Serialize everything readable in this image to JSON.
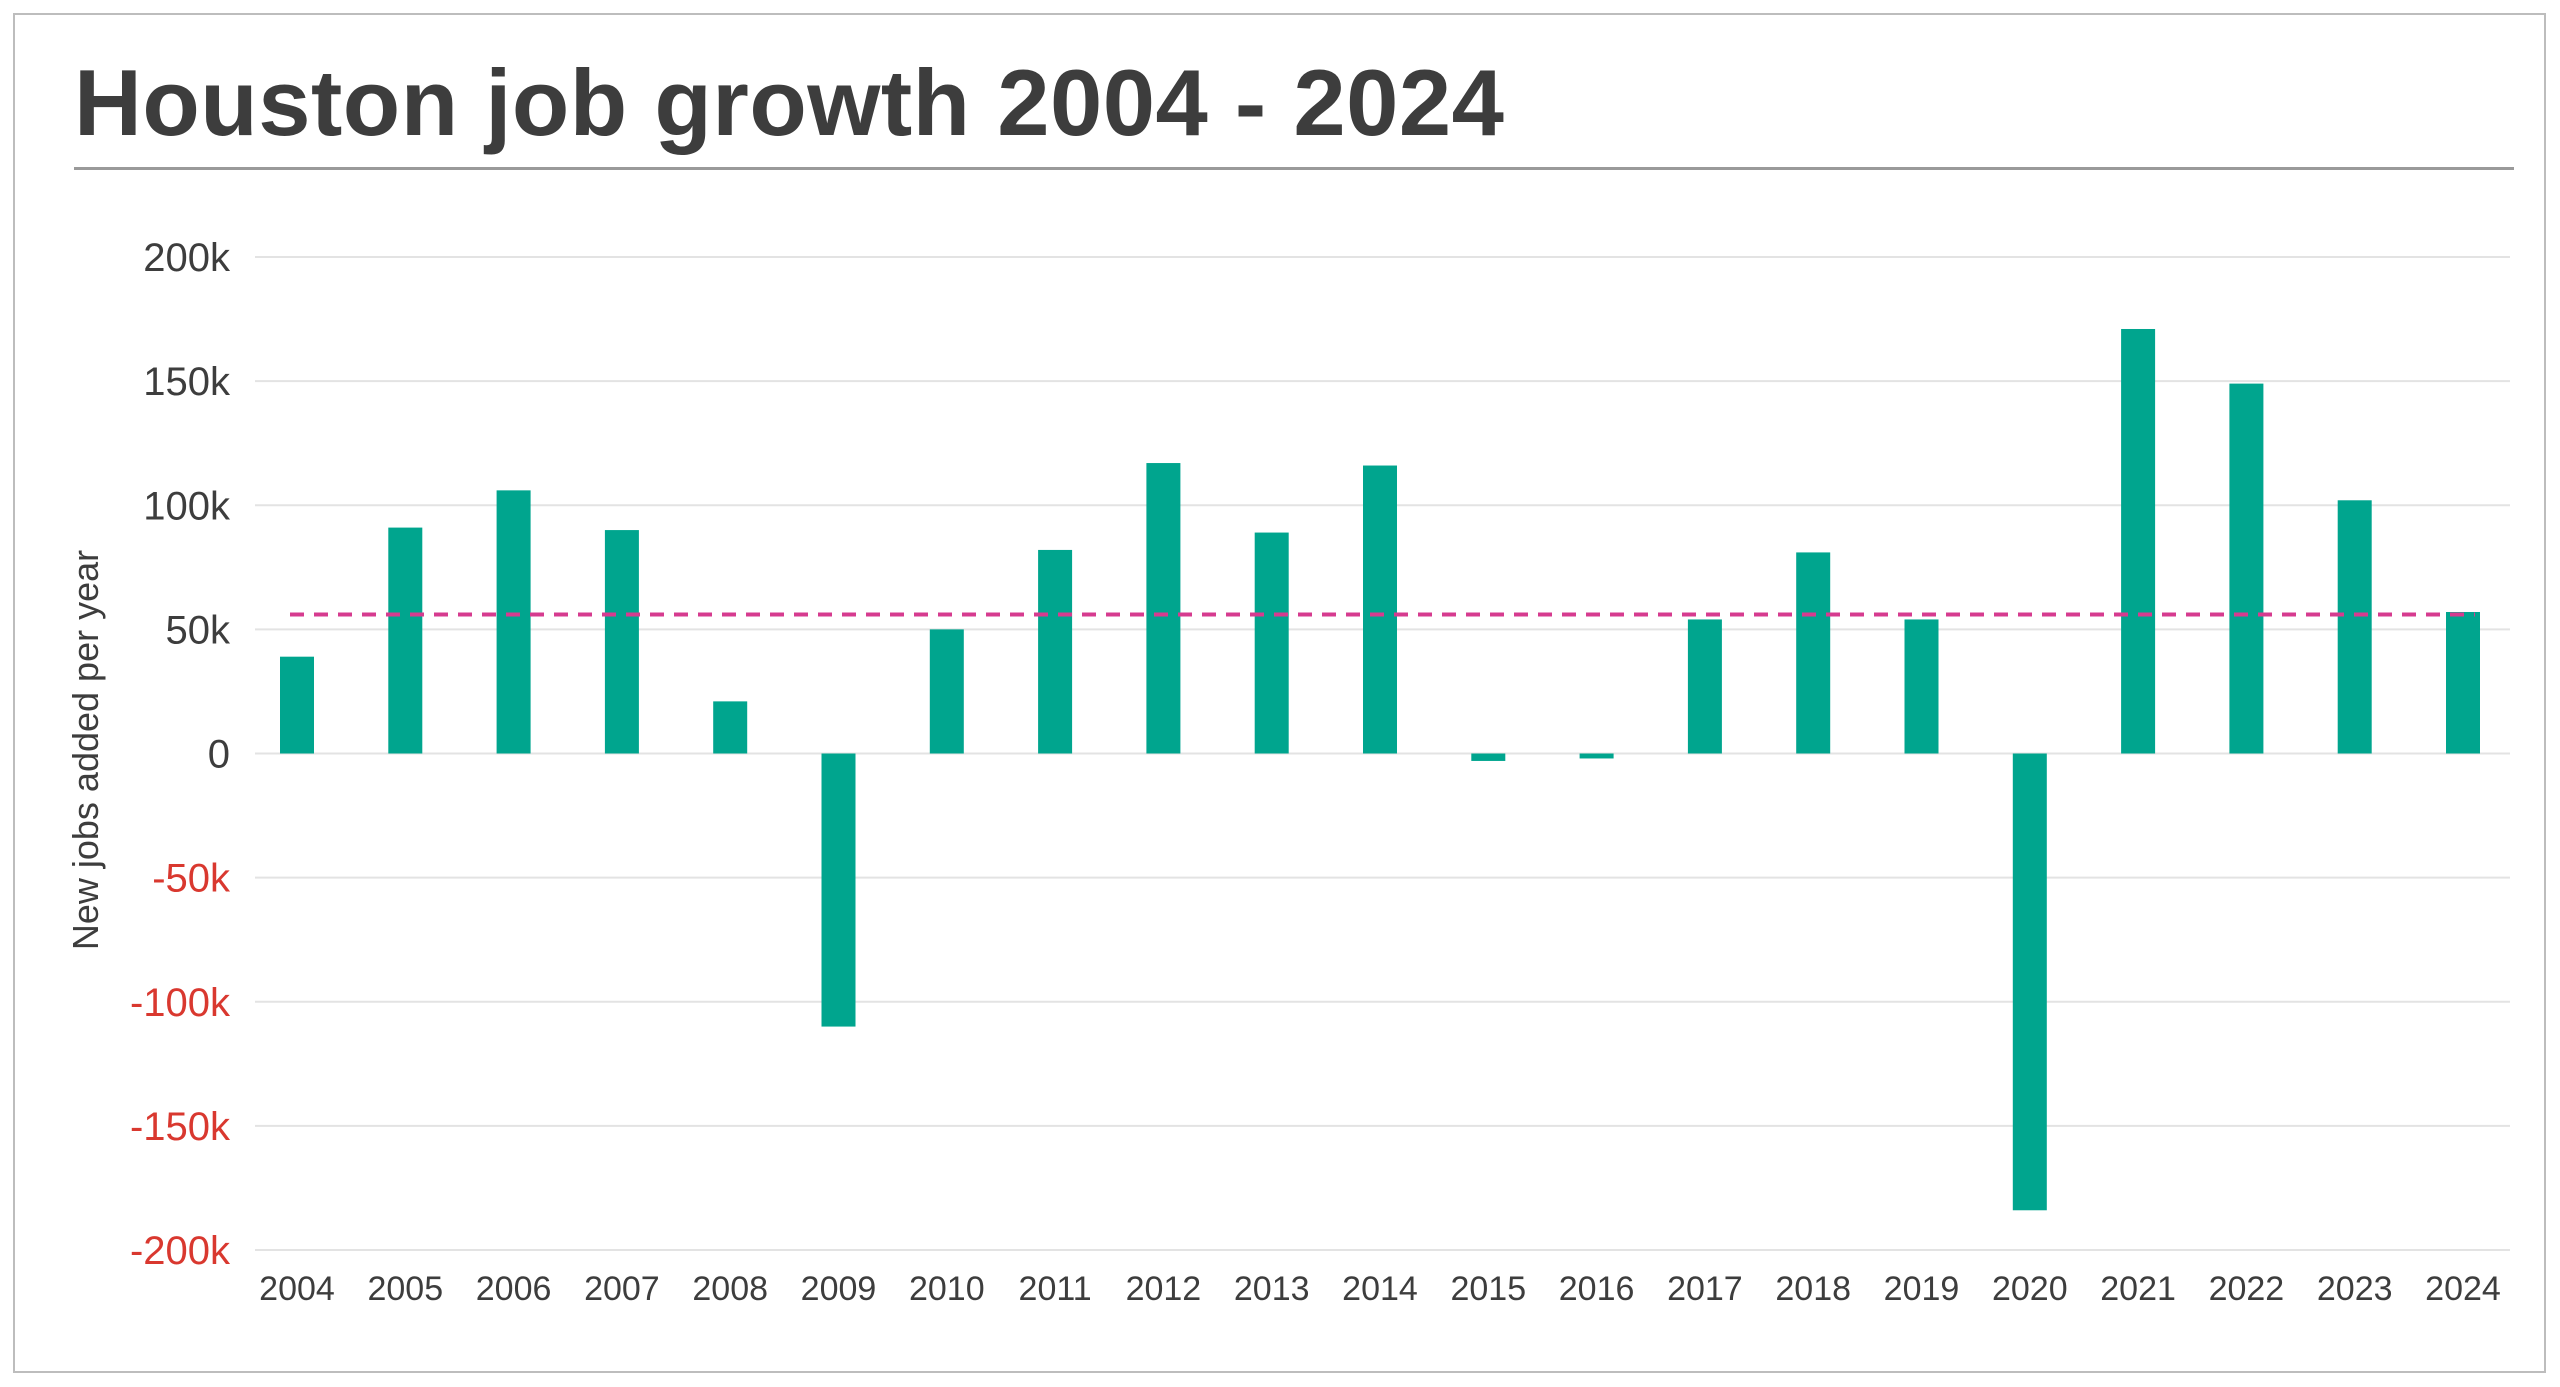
{
  "chart_data": {
    "type": "bar",
    "title": "Houston job growth 2004 - 2024",
    "xlabel": "",
    "ylabel": "New jobs added per year",
    "categories": [
      "2004",
      "2005",
      "2006",
      "2007",
      "2008",
      "2009",
      "2010",
      "2011",
      "2012",
      "2013",
      "2014",
      "2015",
      "2016",
      "2017",
      "2018",
      "2019",
      "2020",
      "2021",
      "2022",
      "2023",
      "2024"
    ],
    "values": [
      39000,
      91000,
      106000,
      90000,
      21000,
      -110000,
      50000,
      82000,
      117000,
      89000,
      116000,
      -3000,
      -2000,
      54000,
      81000,
      54000,
      -184000,
      171000,
      149000,
      102000,
      57000
    ],
    "ylim": [
      -200000,
      200000
    ],
    "yticks": [
      200000,
      150000,
      100000,
      50000,
      0,
      -50000,
      -100000,
      -150000,
      -200000
    ],
    "ytick_labels": [
      "200k",
      "150k",
      "100k",
      "50k",
      "0",
      "-50k",
      "-100k",
      "-150k",
      "-200k"
    ],
    "average_line": 56000,
    "grid": true,
    "colors": {
      "bar": "#00a58e",
      "average": "#d63b8f",
      "positive_tick": "#3d3d3d",
      "negative_tick": "#d9382f",
      "grid": "#e3e3e3"
    }
  }
}
